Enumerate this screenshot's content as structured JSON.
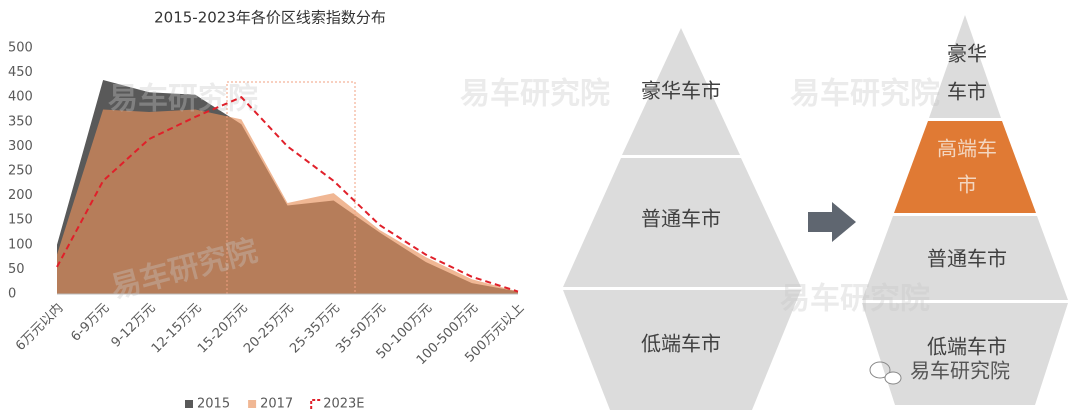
{
  "chart_data": {
    "type": "area",
    "title": "2015-2023年各价区线索指数分布",
    "categories": [
      "6万元以内",
      "6-9万元",
      "9-12万元",
      "12-15万元",
      "15-20万元",
      "20-25万元",
      "25-35万元",
      "35-50万元",
      "50-100万元",
      "100-500万元",
      "500万元以上"
    ],
    "series": [
      {
        "name": "2015",
        "type": "area",
        "color": "#595959",
        "values": [
          100,
          435,
          410,
          405,
          345,
          180,
          190,
          125,
          65,
          22,
          5
        ]
      },
      {
        "name": "2017",
        "type": "area",
        "color": "#e8905a",
        "values": [
          80,
          375,
          370,
          375,
          355,
          185,
          205,
          130,
          75,
          30,
          5
        ]
      },
      {
        "name": "2023E",
        "type": "line",
        "color": "#e0202a",
        "values": [
          55,
          230,
          315,
          360,
          400,
          300,
          230,
          140,
          80,
          35,
          5
        ]
      }
    ],
    "ylim": [
      0,
      500
    ],
    "yticks": [
      0,
      50,
      100,
      150,
      200,
      250,
      300,
      350,
      400,
      450,
      500
    ],
    "grid": false,
    "legend": "bottom"
  },
  "diagram": {
    "left": [
      "豪华车市",
      "普通车市",
      "低端车市"
    ],
    "right": [
      [
        "豪华",
        "车市"
      ],
      [
        "高端车",
        "市"
      ],
      "普通车市",
      "低端车市"
    ]
  },
  "watermark": "易车研究院"
}
